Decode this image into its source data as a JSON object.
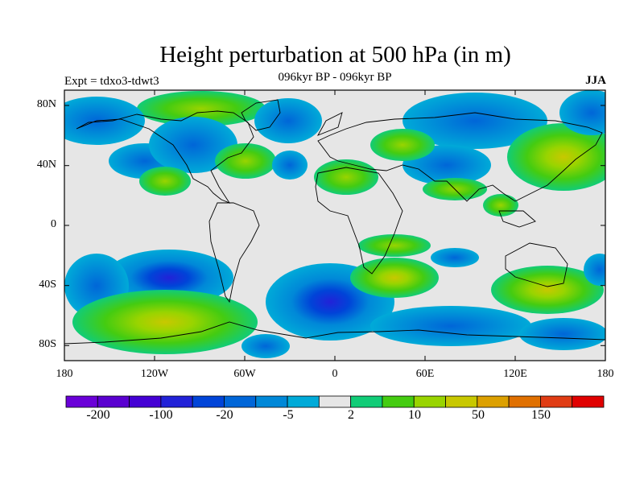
{
  "title": "Height perturbation at 500 hPa (in m)",
  "subtitle": "096kyr BP - 096kyr BP",
  "experiment_label": "Expt = tdxo3-tdwt3",
  "season_label": "JJA",
  "map": {
    "lat_ticks": [
      "80N",
      "40N",
      "0",
      "40S",
      "80S"
    ],
    "lon_ticks": [
      "180",
      "120W",
      "60W",
      "0",
      "60E",
      "120E",
      "180"
    ]
  },
  "colorbar": {
    "colors": [
      "#6a00d8",
      "#5a00d0",
      "#4400d4",
      "#2222d8",
      "#0044d8",
      "#0066d8",
      "#0088d8",
      "#00aad8",
      "#e6e6e6",
      "#11cc77",
      "#44cc11",
      "#99d400",
      "#c8c800",
      "#dca000",
      "#e07000",
      "#e03c14",
      "#e00000"
    ],
    "tick_labels": [
      "-200",
      "-100",
      "-20",
      "-5",
      "2",
      "10",
      "50",
      "150"
    ]
  },
  "chart_data": {
    "type": "heatmap",
    "title": "Height perturbation at 500 hPa (in m)",
    "subtitle": "096kyr BP - 096kyr BP",
    "x_ticks": [
      "180",
      "120W",
      "60W",
      "0",
      "60E",
      "120E",
      "180"
    ],
    "y_ticks": [
      "80N",
      "40N",
      "0",
      "40S",
      "80S"
    ],
    "xlim": [
      -180,
      180
    ],
    "ylim": [
      -90,
      90
    ],
    "levels": [
      -200,
      -100,
      -20,
      -5,
      2,
      10,
      50,
      150
    ],
    "anomaly_centers": [
      {
        "lon": -125,
        "lat": 80,
        "value": 15
      },
      {
        "lon": -170,
        "lat": 62,
        "value": -8
      },
      {
        "lon": -140,
        "lat": 45,
        "value": -8
      },
      {
        "lon": -80,
        "lat": 73,
        "value": -12
      },
      {
        "lon": -80,
        "lat": 38,
        "value": 12
      },
      {
        "lon": -40,
        "lat": 70,
        "value": -8
      },
      {
        "lon": 80,
        "lat": 64,
        "value": -15
      },
      {
        "lon": 70,
        "lat": 43,
        "value": -10
      },
      {
        "lon": 140,
        "lat": 47,
        "value": 25
      },
      {
        "lon": 165,
        "lat": 70,
        "value": -10
      },
      {
        "lon": -90,
        "lat": -32,
        "value": -22
      },
      {
        "lon": -110,
        "lat": -63,
        "value": 40
      },
      {
        "lon": -20,
        "lat": -48,
        "value": -15
      },
      {
        "lon": 40,
        "lat": -35,
        "value": 18
      },
      {
        "lon": 55,
        "lat": -70,
        "value": -10
      },
      {
        "lon": 130,
        "lat": -48,
        "value": 30
      },
      {
        "lon": 160,
        "lat": -78,
        "value": -10
      }
    ]
  }
}
